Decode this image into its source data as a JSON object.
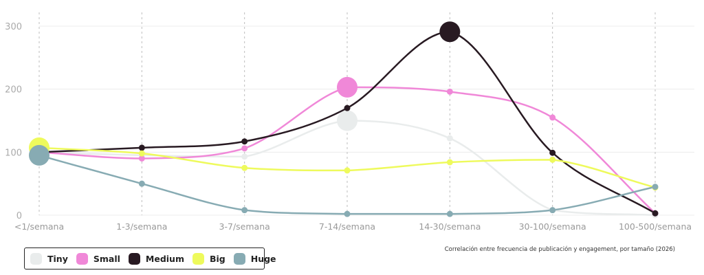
{
  "chart_data": {
    "type": "line",
    "categories": [
      "<1/semana",
      "1-3/semana",
      "3-7/semana",
      "7-14/semana",
      "14-30/semana",
      "30-100/semana",
      "100-500/semana"
    ],
    "yticks": [
      0,
      100,
      200,
      300
    ],
    "ylim": [
      0,
      310
    ],
    "grid": true,
    "legend_position": "bottom-left",
    "caption": "Correlación entre frecuencia de publicación y engagement, por tamaño (2026)",
    "series": [
      {
        "name": "Tiny",
        "color": "#e9ecec",
        "values": [
          100,
          95,
          93,
          150,
          122,
          8,
          0
        ],
        "highlight": 3
      },
      {
        "name": "Small",
        "color": "#f088d8",
        "values": [
          100,
          90,
          106,
          203,
          196,
          155,
          3
        ],
        "highlight": 3
      },
      {
        "name": "Medium",
        "color": "#281a22",
        "values": [
          100,
          107,
          117,
          170,
          291,
          99,
          3
        ],
        "highlight": 4
      },
      {
        "name": "Big",
        "color": "#eefa5c",
        "values": [
          107,
          98,
          75,
          71,
          84,
          88,
          44
        ],
        "highlight": 0
      },
      {
        "name": "Huge",
        "color": "#87abb3",
        "values": [
          95,
          50,
          8,
          2,
          2,
          8,
          45
        ],
        "highlight": 0
      }
    ]
  }
}
